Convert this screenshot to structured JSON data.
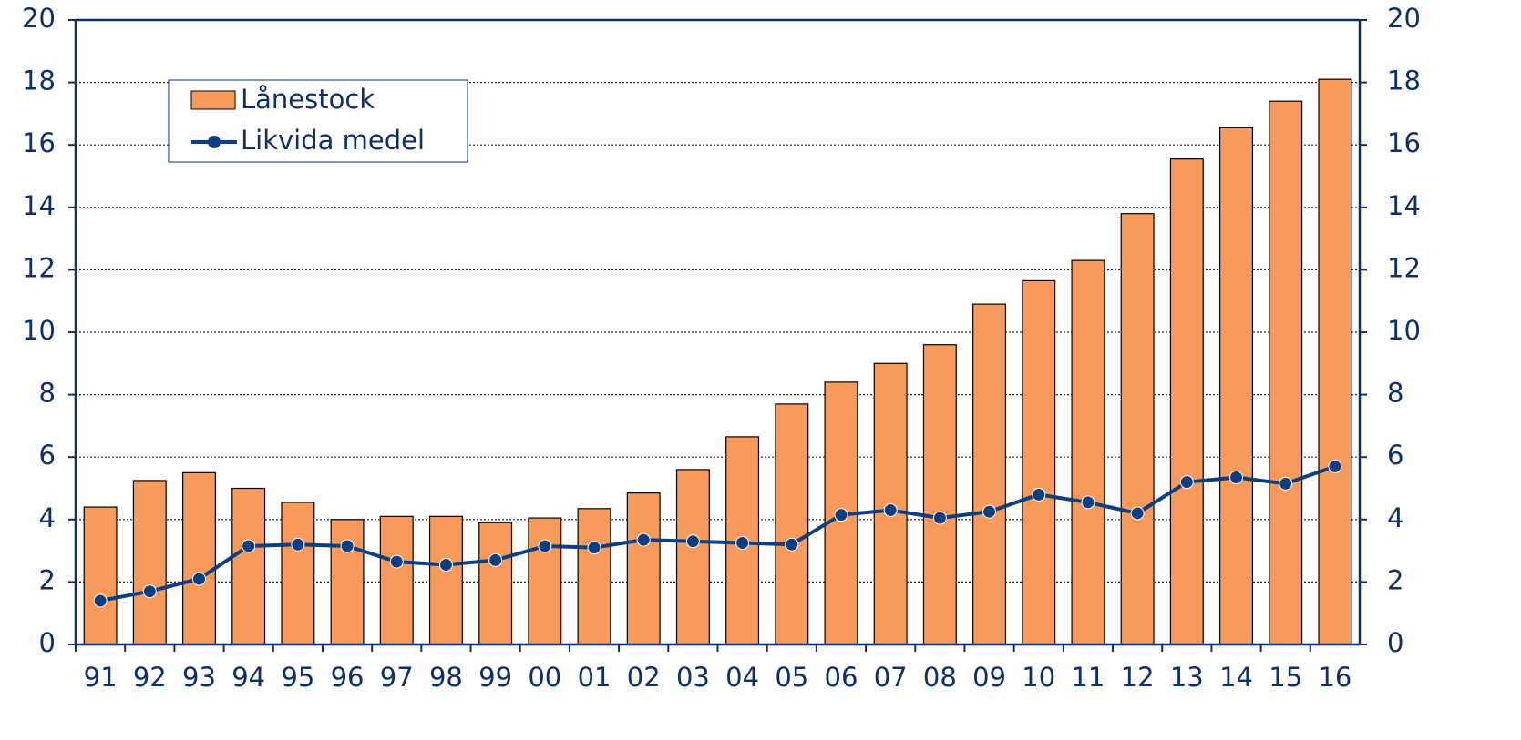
{
  "chart_data": {
    "type": "bar",
    "categories": [
      "91",
      "92",
      "93",
      "94",
      "95",
      "96",
      "97",
      "98",
      "99",
      "00",
      "01",
      "02",
      "03",
      "04",
      "05",
      "06",
      "07",
      "08",
      "09",
      "10",
      "11",
      "12",
      "13",
      "14",
      "15",
      "16"
    ],
    "series": [
      {
        "name": "Lånestock",
        "type": "bar",
        "color": "#f79a5b",
        "values": [
          4.4,
          5.25,
          5.5,
          5.0,
          4.55,
          4.0,
          4.1,
          4.1,
          3.9,
          4.05,
          4.35,
          4.85,
          5.6,
          6.65,
          7.7,
          8.4,
          9.0,
          9.6,
          10.9,
          11.65,
          12.3,
          13.8,
          15.55,
          16.55,
          17.4,
          18.1
        ]
      },
      {
        "name": "Likvida medel",
        "type": "line",
        "color": "#0d3f80",
        "axis": "y2",
        "values": [
          1.4,
          1.7,
          2.1,
          3.15,
          3.2,
          3.15,
          2.65,
          2.55,
          2.7,
          3.15,
          3.1,
          3.35,
          3.3,
          3.25,
          3.2,
          4.15,
          4.3,
          4.05,
          4.25,
          4.8,
          4.55,
          4.2,
          5.2,
          5.35,
          5.15,
          5.7
        ]
      }
    ],
    "ylim": [
      0,
      20
    ],
    "yticks": [
      0,
      2,
      4,
      6,
      8,
      10,
      12,
      14,
      16,
      18,
      20
    ],
    "y2lim": [
      0,
      20
    ],
    "y2ticks": [
      0,
      2,
      4,
      6,
      8,
      10,
      12,
      14,
      16,
      18,
      20
    ],
    "grid": true,
    "legend": "top-left"
  }
}
